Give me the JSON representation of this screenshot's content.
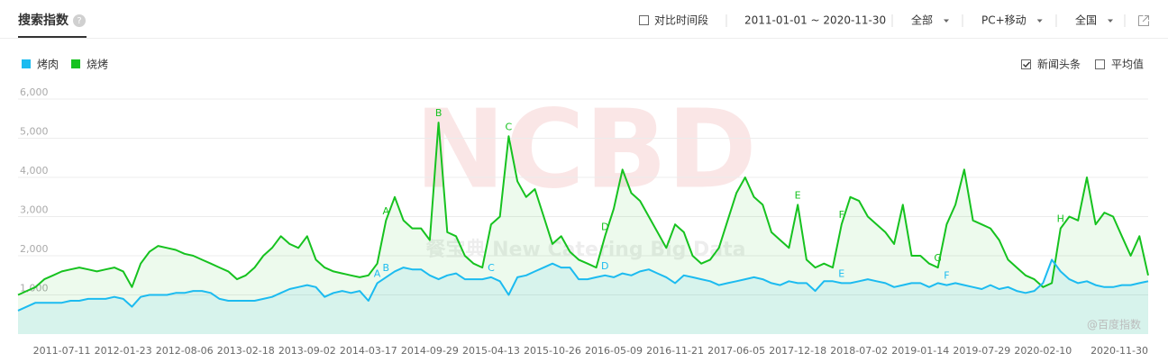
{
  "header": {
    "title": "搜索指数",
    "help": "?",
    "compare": "对比时间段",
    "date_range": "2011-01-01 ~ 2020-11-30",
    "filters": [
      "全部",
      "PC+移动",
      "全国"
    ]
  },
  "options": [
    {
      "label": "新闻头条",
      "checked": true
    },
    {
      "label": "平均值",
      "checked": false
    }
  ],
  "watermarks": [
    "NCBD",
    "餐宝典 New Catering Big Data",
    "@百度指数"
  ],
  "chart_data": {
    "type": "area-line",
    "legend": "top-left",
    "grid": true,
    "categories": [
      null,
      null,
      null,
      null,
      null,
      "2011-07-11",
      null,
      null,
      null,
      null,
      null,
      null,
      "2012-01-23",
      null,
      null,
      null,
      null,
      null,
      null,
      "2012-08-06",
      null,
      null,
      null,
      null,
      null,
      null,
      "2013-02-18",
      null,
      null,
      null,
      null,
      null,
      null,
      "2013-09-02",
      null,
      null,
      null,
      null,
      null,
      null,
      "2014-03-17",
      null,
      null,
      null,
      null,
      null,
      null,
      "2014-09-29",
      null,
      null,
      null,
      null,
      null,
      null,
      "2015-04-13",
      null,
      null,
      null,
      null,
      null,
      null,
      "2015-10-26",
      null,
      null,
      null,
      null,
      null,
      null,
      "2016-05-09",
      null,
      null,
      null,
      null,
      null,
      null,
      "2016-11-21",
      null,
      null,
      null,
      null,
      null,
      null,
      "2017-06-05",
      null,
      null,
      null,
      null,
      null,
      null,
      "2017-12-18",
      null,
      null,
      null,
      null,
      null,
      null,
      "2018-07-02",
      null,
      null,
      null,
      null,
      null,
      null,
      "2019-01-14",
      null,
      null,
      null,
      null,
      null,
      null,
      "2019-07-29",
      null,
      null,
      null,
      null,
      null,
      null,
      "2020-02-10",
      null,
      null,
      null,
      null,
      null,
      null,
      null,
      null,
      null,
      null,
      null,
      "2020-11-30"
    ],
    "series": [
      {
        "name": "烤肉",
        "color": "#1cbbf0",
        "values": [
          600,
          700,
          800,
          800,
          800,
          800,
          850,
          850,
          900,
          900,
          900,
          950,
          900,
          700,
          950,
          1000,
          1000,
          1000,
          1050,
          1050,
          1100,
          1100,
          1050,
          900,
          850,
          850,
          850,
          850,
          900,
          950,
          1050,
          1150,
          1200,
          1250,
          1200,
          950,
          1050,
          1100,
          1050,
          1100,
          850,
          1300,
          1450,
          1600,
          1700,
          1650,
          1650,
          1500,
          1400,
          1500,
          1550,
          1400,
          1400,
          1400,
          1450,
          1350,
          1000,
          1450,
          1500,
          1600,
          1700,
          1800,
          1700,
          1700,
          1400,
          1400,
          1450,
          1500,
          1450,
          1550,
          1500,
          1600,
          1650,
          1550,
          1450,
          1300,
          1500,
          1450,
          1400,
          1350,
          1250,
          1300,
          1350,
          1400,
          1450,
          1400,
          1300,
          1250,
          1350,
          1300,
          1300,
          1100,
          1350,
          1350,
          1300,
          1300,
          1350,
          1400,
          1350,
          1300,
          1200,
          1250,
          1300,
          1300,
          1200,
          1300,
          1250,
          1300,
          1250,
          1200,
          1150,
          1250,
          1150,
          1200,
          1100,
          1050,
          1100,
          1300,
          1900,
          1600,
          1400,
          1300,
          1350,
          1250,
          1200,
          1200,
          1250,
          1250,
          1300,
          1350
        ]
      },
      {
        "name": "烧烤",
        "color": "#16c21f",
        "values": [
          1000,
          1100,
          1200,
          1400,
          1500,
          1600,
          1650,
          1700,
          1650,
          1600,
          1650,
          1700,
          1600,
          1200,
          1800,
          2100,
          2250,
          2200,
          2150,
          2050,
          2000,
          1900,
          1800,
          1700,
          1600,
          1400,
          1500,
          1700,
          2000,
          2200,
          2500,
          2300,
          2200,
          2500,
          1900,
          1700,
          1600,
          1550,
          1500,
          1450,
          1500,
          1800,
          2900,
          3500,
          2900,
          2700,
          2700,
          2400,
          5400,
          2600,
          2500,
          2000,
          1800,
          1700,
          2800,
          3000,
          5050,
          3900,
          3500,
          3700,
          3000,
          2300,
          2500,
          2100,
          1900,
          1800,
          1700,
          2500,
          3200,
          4200,
          3600,
          3400,
          3000,
          2600,
          2200,
          2800,
          2600,
          2000,
          1800,
          1900,
          2200,
          2900,
          3600,
          4000,
          3500,
          3300,
          2600,
          2400,
          2200,
          3300,
          1900,
          1700,
          1800,
          1700,
          2800,
          3500,
          3400,
          3000,
          2800,
          2600,
          2300,
          3300,
          2000,
          2000,
          1800,
          1700,
          2800,
          3300,
          4200,
          2900,
          2800,
          2700,
          2400,
          1900,
          1700,
          1500,
          1400,
          1200,
          1300,
          2700,
          3000,
          2900,
          4000,
          2800,
          3100,
          3000,
          2500,
          2000,
          2500,
          1500
        ]
      }
    ],
    "ylim": [
      0,
      6000
    ],
    "yticks": [
      {
        "value": 1000,
        "label": "1,000"
      },
      {
        "value": 2000,
        "label": "2,000"
      },
      {
        "value": 3000,
        "label": "3,000"
      },
      {
        "value": 4000,
        "label": "4,000"
      },
      {
        "value": 5000,
        "label": "5,000"
      },
      {
        "value": 6000,
        "label": "6,000"
      }
    ],
    "annotations": [
      {
        "text": "A",
        "series": 1,
        "at": 42
      },
      {
        "text": "B",
        "series": 1,
        "at": 48
      },
      {
        "text": "C",
        "series": 1,
        "at": 56
      },
      {
        "text": "D",
        "series": 1,
        "at": 67
      },
      {
        "text": "E",
        "series": 1,
        "at": 89
      },
      {
        "text": "F",
        "series": 1,
        "at": 94
      },
      {
        "text": "G",
        "series": 1,
        "at": 105
      },
      {
        "text": "H",
        "series": 1,
        "at": 119
      },
      {
        "text": "A",
        "series": 0,
        "at": 41
      },
      {
        "text": "B",
        "series": 0,
        "at": 42
      },
      {
        "text": "C",
        "series": 0,
        "at": 54
      },
      {
        "text": "D",
        "series": 0,
        "at": 67
      },
      {
        "text": "E",
        "series": 0,
        "at": 94
      },
      {
        "text": "F",
        "series": 0,
        "at": 106
      }
    ]
  }
}
